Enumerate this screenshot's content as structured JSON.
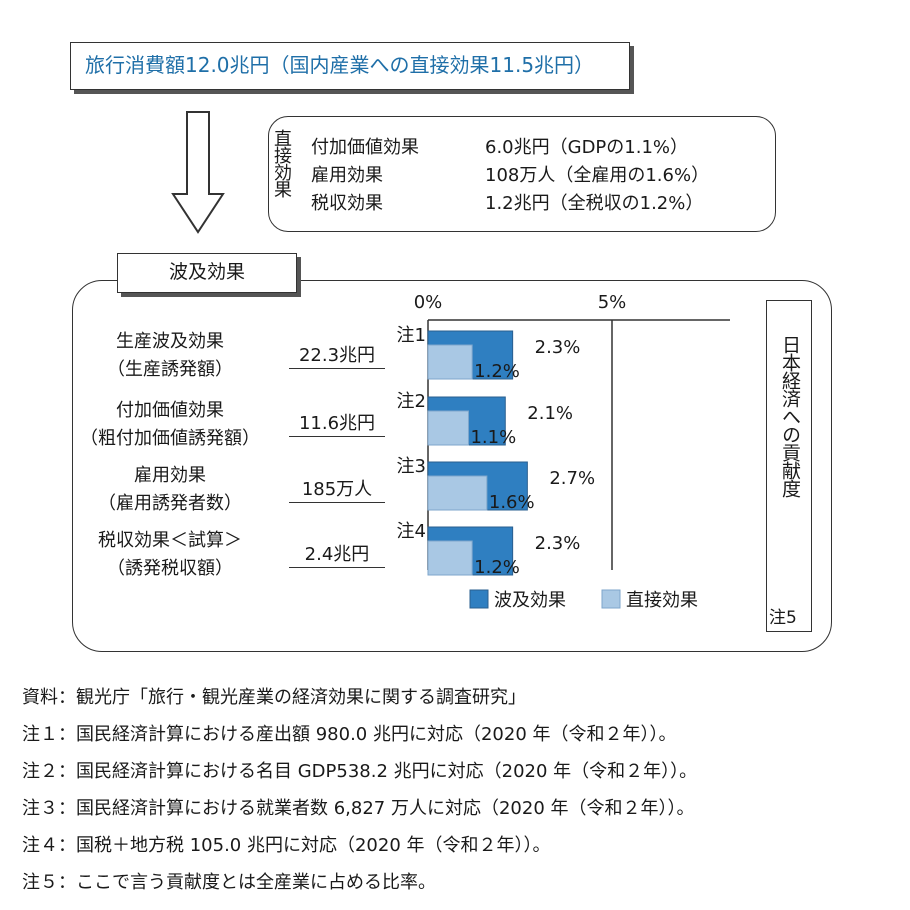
{
  "header": {
    "total_consumption": "旅行消費額12.0兆円（国内産業への直接効果11.5兆円）"
  },
  "direct_effect": {
    "label": "直接効果",
    "rows": [
      {
        "name": "付加価値効果",
        "value": "6.0兆円（GDPの1.1%）"
      },
      {
        "name": "雇用効果",
        "value": "108万人（全雇用の1.6%）"
      },
      {
        "name": "税収効果",
        "value": "1.2兆円（全税収の1.2%）"
      }
    ]
  },
  "ripple_effect": {
    "label": "波及効果",
    "side_label": "日本経済への貢献度",
    "side_note": "注5",
    "rows": [
      {
        "label_1": "生産波及効果",
        "label_2": "（生産誘発額）",
        "value": "22.3兆円",
        "note": "注1"
      },
      {
        "label_1": "付加価値効果",
        "label_2": "（粗付加価値誘発額）",
        "value": "11.6兆円",
        "note": "注2"
      },
      {
        "label_1": "雇用効果",
        "label_2": "（雇用誘発者数）",
        "value": "185万人",
        "note": "注3"
      },
      {
        "label_1": "税収効果＜試算＞",
        "label_2": "（誘発税収額）",
        "value": "2.4兆円",
        "note": "注4"
      }
    ]
  },
  "chart_data": {
    "type": "bar",
    "orientation": "horizontal",
    "categories": [
      "生産波及効果",
      "付加価値効果",
      "雇用効果",
      "税収効果＜試算＞"
    ],
    "series": [
      {
        "name": "波及効果",
        "values": [
          2.3,
          2.1,
          2.7,
          2.3
        ],
        "labels": [
          "2.3%",
          "2.1%",
          "2.7%",
          "2.3%"
        ],
        "color": "#2f7fc1"
      },
      {
        "name": "直接効果",
        "values": [
          1.2,
          1.1,
          1.6,
          1.2
        ],
        "labels": [
          "1.2%",
          "1.1%",
          "1.6%",
          "1.2%"
        ],
        "color": "#a9c8e4"
      }
    ],
    "xlim": [
      0,
      5
    ],
    "ticks": [
      {
        "value": 0,
        "label": "0%"
      },
      {
        "value": 5,
        "label": "5%"
      }
    ],
    "legend_position": "bottom"
  },
  "notes": [
    "資料：観光庁「旅行・観光産業の経済効果に関する調査研究」",
    "注１：国民経済計算における産出額 980.0 兆円に対応（2020 年（令和２年））。",
    "注２：国民経済計算における名目 GDP538.2 兆円に対応（2020 年（令和２年））。",
    "注３：国民経済計算における就業者数 6,827 万人に対応（2020 年（令和２年））。",
    "注４：国税＋地方税 105.0 兆円に対応（2020 年（令和２年））。",
    "注５：ここで言う貢献度とは全産業に占める比率。"
  ]
}
